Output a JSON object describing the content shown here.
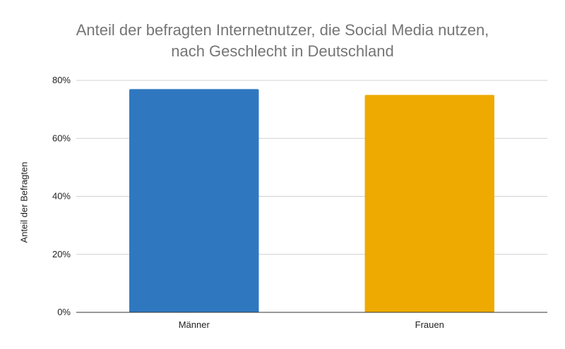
{
  "chart_data": {
    "type": "bar",
    "title_lines": [
      "Anteil der befragten Internetnutzer, die Social Media nutzen,",
      "nach Geschlecht in Deutschland"
    ],
    "categories": [
      "Männer",
      "Frauen"
    ],
    "values": [
      77,
      75
    ],
    "colors": [
      "#2f78c0",
      "#eeaa00"
    ],
    "xlabel": "",
    "ylabel": "Anteil der Befragten",
    "ylim": [
      0,
      80
    ],
    "yticks": [
      0,
      20,
      40,
      60,
      80
    ],
    "ytick_labels": [
      "0%",
      "20%",
      "40%",
      "60%",
      "80%"
    ],
    "grid": true
  }
}
